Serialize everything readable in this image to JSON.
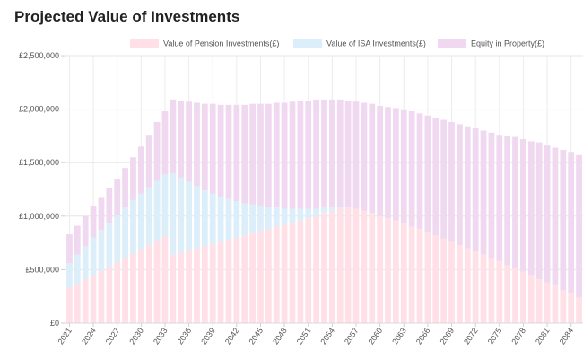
{
  "page": {
    "title": "Projected Value of Investments"
  },
  "chart_data": {
    "type": "bar",
    "stacked": true,
    "x": [
      2021,
      2022,
      2023,
      2024,
      2025,
      2026,
      2027,
      2028,
      2029,
      2030,
      2031,
      2032,
      2033,
      2034,
      2035,
      2036,
      2037,
      2038,
      2039,
      2040,
      2041,
      2042,
      2043,
      2044,
      2045,
      2046,
      2047,
      2048,
      2049,
      2050,
      2051,
      2052,
      2053,
      2054,
      2055,
      2056,
      2057,
      2058,
      2059,
      2060,
      2061,
      2062,
      2063,
      2064,
      2065,
      2066,
      2067,
      2068,
      2069,
      2070,
      2071,
      2072,
      2073,
      2074,
      2075,
      2076,
      2077,
      2078,
      2079,
      2080,
      2081,
      2082,
      2083,
      2084,
      2085
    ],
    "x_tick_labels": [
      "2021",
      "2024",
      "2027",
      "2030",
      "2033",
      "2036",
      "2039",
      "2042",
      "2045",
      "2048",
      "2051",
      "2054",
      "2057",
      "2060",
      "2063",
      "2066",
      "2069",
      "2072",
      "2075",
      "2078",
      "2081",
      "2084"
    ],
    "series": [
      {
        "name": "Value of Pension Investments(£)",
        "color": "#ffe0e6",
        "values": [
          330000,
          370000,
          410000,
          450000,
          490000,
          530000,
          570000,
          610000,
          650000,
          690000,
          730000,
          770000,
          810000,
          640000,
          660000,
          680000,
          700000,
          720000,
          740000,
          760000,
          780000,
          800000,
          820000,
          840000,
          860000,
          880000,
          900000,
          920000,
          940000,
          960000,
          980000,
          1000000,
          1030000,
          1050000,
          1070000,
          1080000,
          1070000,
          1050000,
          1030000,
          1000000,
          980000,
          960000,
          930000,
          900000,
          880000,
          850000,
          820000,
          790000,
          760000,
          730000,
          700000,
          670000,
          640000,
          610000,
          580000,
          540000,
          510000,
          480000,
          450000,
          410000,
          380000,
          350000,
          310000,
          280000,
          240000
        ]
      },
      {
        "name": "Value of ISA Investments(£)",
        "color": "#dbeefa",
        "values": [
          230000,
          270000,
          310000,
          350000,
          380000,
          410000,
          440000,
          470000,
          500000,
          520000,
          540000,
          560000,
          580000,
          760000,
          700000,
          640000,
          580000,
          520000,
          470000,
          420000,
          380000,
          340000,
          300000,
          270000,
          230000,
          200000,
          180000,
          150000,
          130000,
          110000,
          90000,
          70000,
          50000,
          30000,
          10000,
          0,
          0,
          0,
          0,
          0,
          0,
          0,
          0,
          0,
          0,
          0,
          0,
          0,
          0,
          0,
          0,
          0,
          0,
          0,
          0,
          0,
          0,
          0,
          0,
          0,
          0,
          0,
          0,
          0,
          0
        ]
      },
      {
        "name": "Equity in Property(£)",
        "color": "#f0d8f0",
        "values": [
          270000,
          270000,
          280000,
          290000,
          300000,
          320000,
          340000,
          370000,
          400000,
          440000,
          490000,
          550000,
          590000,
          690000,
          720000,
          750000,
          780000,
          810000,
          840000,
          860000,
          880000,
          900000,
          920000,
          940000,
          960000,
          970000,
          980000,
          990000,
          1000000,
          1010000,
          1010000,
          1020000,
          1010000,
          1010000,
          1010000,
          1000000,
          1000000,
          1010000,
          1020000,
          1030000,
          1040000,
          1050000,
          1060000,
          1080000,
          1080000,
          1090000,
          1100000,
          1110000,
          1120000,
          1130000,
          1140000,
          1150000,
          1160000,
          1170000,
          1180000,
          1210000,
          1230000,
          1240000,
          1250000,
          1280000,
          1280000,
          1290000,
          1310000,
          1320000,
          1330000
        ]
      }
    ],
    "y_tick_labels": [
      "£0",
      "£500,000",
      "£1,000,000",
      "£1,500,000",
      "£2,000,000",
      "£2,500,000"
    ],
    "ylim": [
      0,
      2500000
    ],
    "grid": true,
    "legend_position": "top"
  }
}
